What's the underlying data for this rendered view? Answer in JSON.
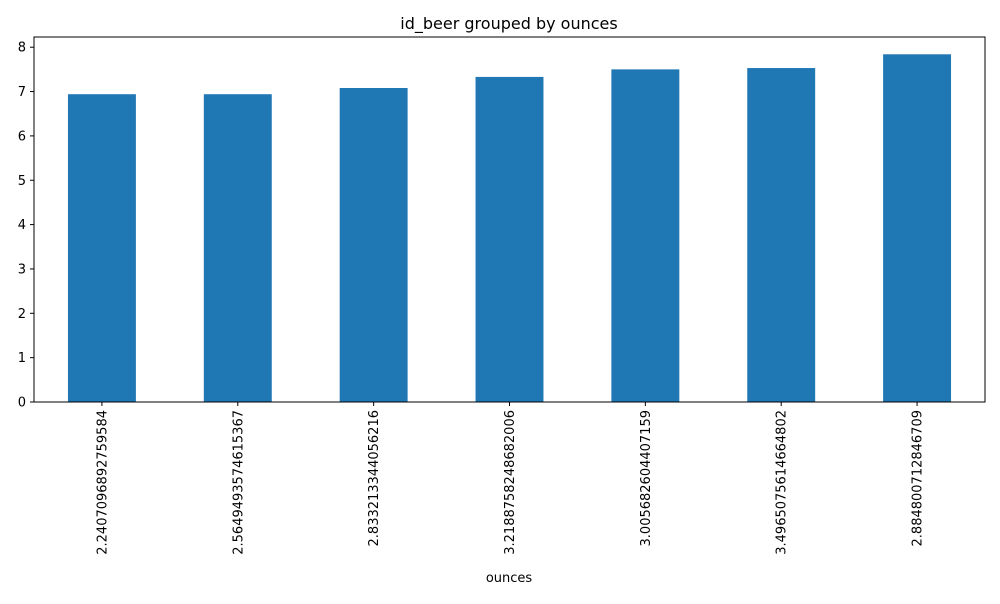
{
  "chart_data": {
    "type": "bar",
    "title": "id_beer grouped by ounces",
    "xlabel": "ounces",
    "ylabel": "",
    "categories": [
      "2.2407096892759584",
      "2.5649493574615367",
      "2.833213344056216",
      "3.2188758248682006",
      "3.005682604407159",
      "3.4965075614664802",
      "2.884800712846709"
    ],
    "values": [
      6.94,
      6.94,
      7.08,
      7.33,
      7.5,
      7.53,
      7.84
    ],
    "ylim": [
      0,
      8.23
    ],
    "yticks": [
      "0",
      "1",
      "2",
      "3",
      "4",
      "5",
      "6",
      "7",
      "8"
    ],
    "bar_color": "#1f77b4",
    "grid": false,
    "legend": "none"
  }
}
